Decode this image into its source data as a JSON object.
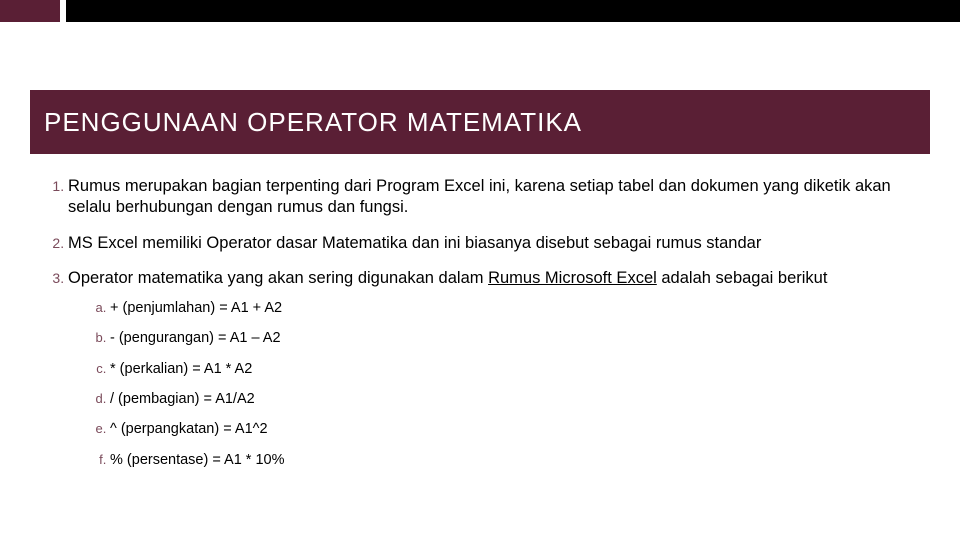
{
  "colors": {
    "maroon": "#5a1f35",
    "black": "#000000",
    "white": "#ffffff",
    "list_marker": "#7a4a5a"
  },
  "title": "PENGGUNAAN OPERATOR MATEMATIKA",
  "points": [
    "Rumus merupakan bagian terpenting dari Program Excel ini, karena setiap tabel dan dokumen yang diketik akan selalu berhubungan dengan rumus dan fungsi.",
    "MS Excel memiliki Operator dasar Matematika dan ini biasanya disebut sebagai rumus standar"
  ],
  "point3_prefix": "Operator matematika yang akan sering digunakan dalam ",
  "point3_link": "Rumus Microsoft Excel",
  "point3_suffix": " adalah sebagai berikut",
  "sub_items": [
    "+ (penjumlahan) = A1 + A2",
    "- (pengurangan) = A1 – A2",
    "* (perkalian) = A1 * A2",
    "/ (pembagian) = A1/A2",
    "^ (perpangkatan) = A1^2",
    "% (persentase) = A1 * 10%"
  ]
}
